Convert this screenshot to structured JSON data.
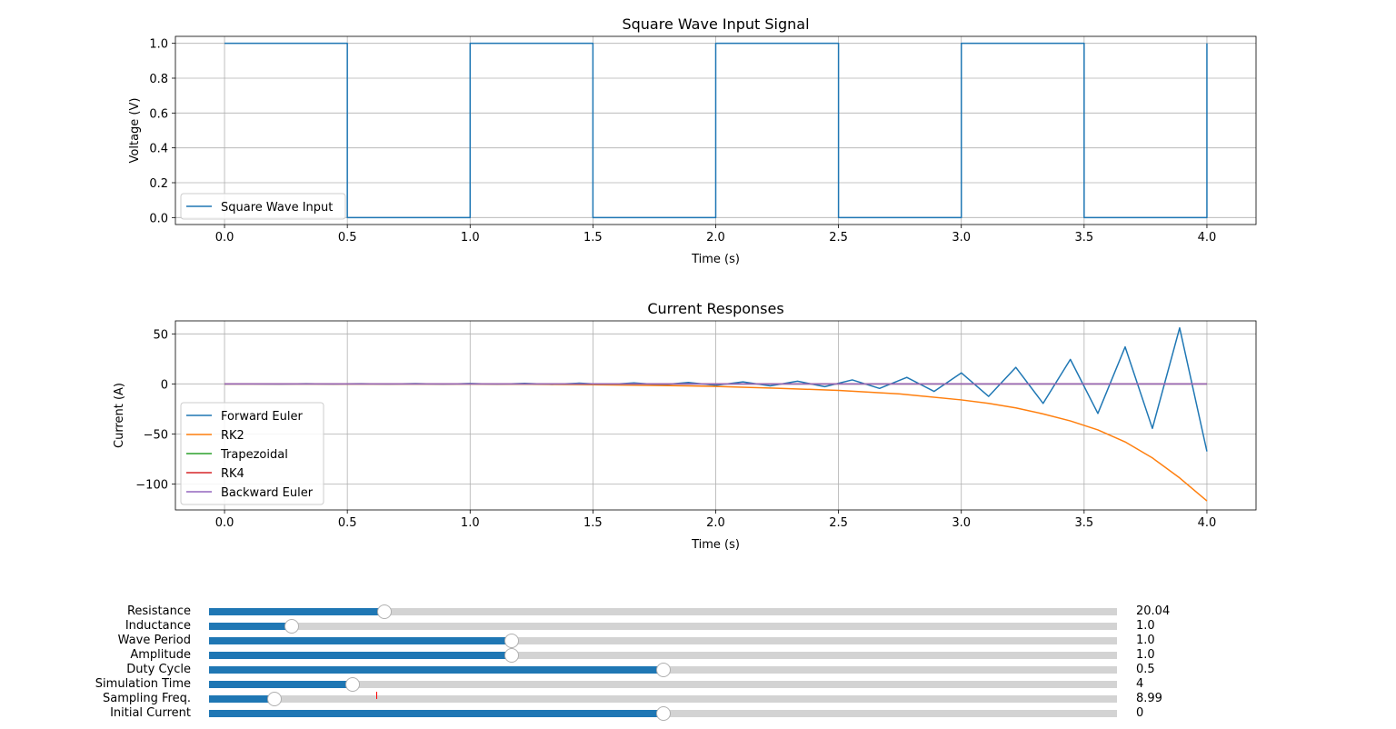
{
  "chart_data": [
    {
      "type": "line",
      "title": "Square Wave Input Signal",
      "xlabel": "Time (s)",
      "ylabel": "Voltage (V)",
      "xlim": [
        -0.2,
        4.2
      ],
      "ylim": [
        -0.04,
        1.04
      ],
      "xticks": [
        "0.0",
        "0.5",
        "1.0",
        "1.5",
        "2.0",
        "2.5",
        "3.0",
        "3.5",
        "4.0"
      ],
      "yticks": [
        "0.0",
        "0.2",
        "0.4",
        "0.6",
        "0.8",
        "1.0"
      ],
      "grid": true,
      "legend_position": "lower-left",
      "series": [
        {
          "name": "Square Wave Input",
          "color": "#1f77b4",
          "x": [
            0,
            0.5,
            0.5,
            1.0,
            1.0,
            1.5,
            1.5,
            2.0,
            2.0,
            2.5,
            2.5,
            3.0,
            3.0,
            3.5,
            3.5,
            4.0,
            4.0
          ],
          "y": [
            1,
            1,
            0,
            0,
            1,
            1,
            0,
            0,
            1,
            1,
            0,
            0,
            1,
            1,
            0,
            0,
            1
          ]
        }
      ]
    },
    {
      "type": "line",
      "title": "Current Responses",
      "xlabel": "Time (s)",
      "ylabel": "Current (A)",
      "xlim": [
        -0.2,
        4.2
      ],
      "ylim": [
        -126,
        63
      ],
      "xticks": [
        "0.0",
        "0.5",
        "1.0",
        "1.5",
        "2.0",
        "2.5",
        "3.0",
        "3.5",
        "4.0"
      ],
      "yticks": [
        "50",
        "0",
        "−50",
        "−100"
      ],
      "grid": true,
      "legend_position": "lower-left",
      "series": [
        {
          "name": "Forward Euler",
          "color": "#1f77b4",
          "x": [
            0,
            0.111,
            0.222,
            0.333,
            0.444,
            0.556,
            0.667,
            0.778,
            0.889,
            1.0,
            1.111,
            1.222,
            1.333,
            1.444,
            1.556,
            1.667,
            1.778,
            1.889,
            2.0,
            2.111,
            2.222,
            2.333,
            2.444,
            2.556,
            2.667,
            2.778,
            2.889,
            3.0,
            3.111,
            3.222,
            3.333,
            3.444,
            3.556,
            3.667,
            3.778,
            3.889,
            4.0
          ],
          "y": [
            0,
            0.1,
            -0.1,
            0.2,
            -0.1,
            0.2,
            -0.2,
            0.3,
            -0.3,
            0.4,
            -0.4,
            0.5,
            -0.5,
            0.7,
            -0.7,
            1.0,
            -1.0,
            1.4,
            -1.4,
            2.0,
            -2.0,
            2.7,
            -2.8,
            4.0,
            -4.5,
            6.5,
            -7.5,
            11.0,
            -12.5,
            16.5,
            -19.5,
            24.5,
            -29.5,
            37.0,
            -44.5,
            56.0,
            -67.5
          ]
        },
        {
          "name": "RK2",
          "color": "#ff7f0e",
          "x": [
            0,
            0.25,
            0.5,
            0.75,
            1.0,
            1.25,
            1.5,
            1.75,
            2.0,
            2.25,
            2.5,
            2.75,
            3.0,
            3.111,
            3.222,
            3.333,
            3.444,
            3.556,
            3.667,
            3.778,
            3.889,
            4.0
          ],
          "y": [
            0,
            0,
            -0.1,
            -0.1,
            -0.2,
            -0.4,
            -0.8,
            -1.5,
            -2.5,
            -4.3,
            -6.5,
            -10,
            -16,
            -19.5,
            -24,
            -30,
            -37,
            -46,
            -58,
            -74,
            -94,
            -117
          ]
        },
        {
          "name": "Trapezoidal",
          "color": "#2ca02c",
          "x": [
            0,
            4.0
          ],
          "y": [
            0,
            0
          ]
        },
        {
          "name": "RK4",
          "color": "#d62728",
          "x": [
            0,
            4.0
          ],
          "y": [
            0,
            0
          ]
        },
        {
          "name": "Backward Euler",
          "color": "#9467bd",
          "x": [
            0,
            4.0
          ],
          "y": [
            0,
            0
          ]
        }
      ]
    }
  ],
  "sliders": [
    {
      "label": "Resistance",
      "value": "20.04",
      "fraction": 0.193
    },
    {
      "label": "Inductance",
      "value": "1.0",
      "fraction": 0.091
    },
    {
      "label": "Wave Period",
      "value": "1.0",
      "fraction": 0.333
    },
    {
      "label": "Amplitude",
      "value": "1.0",
      "fraction": 0.333
    },
    {
      "label": "Duty Cycle",
      "value": "0.5",
      "fraction": 0.5
    },
    {
      "label": "Simulation Time",
      "value": "4",
      "fraction": 0.158
    },
    {
      "label": "Sampling Freq.",
      "value": "8.99",
      "fraction": 0.072,
      "initial_fraction": 0.184
    },
    {
      "label": "Initial Current",
      "value": "0",
      "fraction": 0.5
    }
  ],
  "colors": {
    "slider_fill": "#1f77b4",
    "slider_track": "#d3d3d3",
    "grid": "#b0b0b0"
  }
}
